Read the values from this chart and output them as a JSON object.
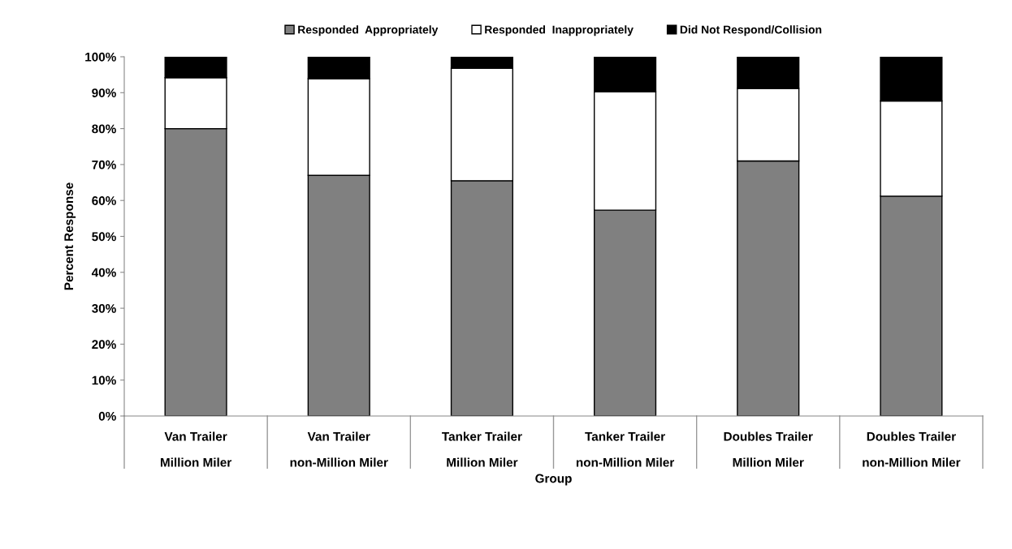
{
  "chart_data": {
    "type": "bar",
    "stacked": true,
    "xlabel": "Group",
    "ylabel": "Percent Response",
    "categories": [
      "Van Trailer\nMillion Miler",
      "Van Trailer\nnon-Million Miler",
      "Tanker Trailer\nMillion Miler",
      "Tanker Trailer\nnon-Million Miler",
      "Doubles Trailer\nMillion Miler",
      "Doubles Trailer\nnon-Million Miler"
    ],
    "series": [
      {
        "name": "Responded  Appropriately",
        "color": "#808080",
        "values": [
          80,
          67,
          65.5,
          57.3,
          71,
          61.2
        ]
      },
      {
        "name": "Responded  Inappropriately",
        "color": "#ffffff",
        "values": [
          14.2,
          26.9,
          31.3,
          33,
          20.2,
          26.5
        ]
      },
      {
        "name": "Did Not Respond/Collision",
        "color": "#000000",
        "values": [
          5.8,
          6.1,
          3.2,
          9.7,
          8.8,
          12.3
        ]
      }
    ],
    "ylim": [
      0,
      100
    ],
    "yticks": [
      {
        "value": 0,
        "label": "0%"
      },
      {
        "value": 10,
        "label": "10%"
      },
      {
        "value": 20,
        "label": "20%"
      },
      {
        "value": 30,
        "label": "30%"
      },
      {
        "value": 40,
        "label": "40%"
      },
      {
        "value": 50,
        "label": "50%"
      },
      {
        "value": 60,
        "label": "60%"
      },
      {
        "value": 70,
        "label": "70%"
      },
      {
        "value": 80,
        "label": "80%"
      },
      {
        "value": 90,
        "label": "90%"
      },
      {
        "value": 100,
        "label": "100%"
      }
    ],
    "grid": false,
    "legend": "top"
  }
}
